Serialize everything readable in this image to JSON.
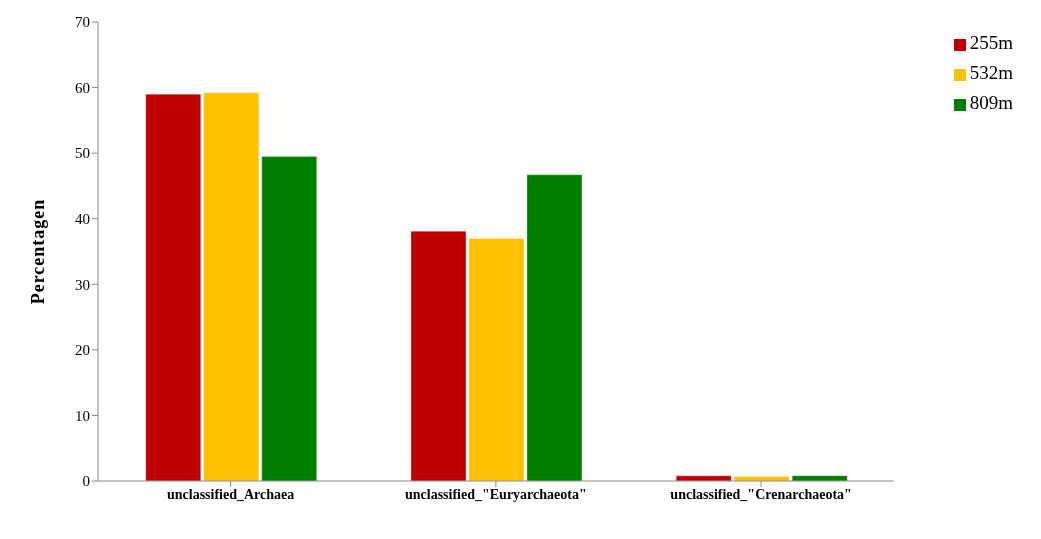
{
  "chart_data": {
    "type": "bar",
    "ylabel": "Percentagen",
    "categories": [
      "unclassified_Archaea",
      "unclassified_\"Euryarchaeota\"",
      "unclassified_\"Crenarchaeota\""
    ],
    "series": [
      {
        "name": "255m",
        "color": "#c00000",
        "values": [
          59,
          38.1,
          0.8
        ]
      },
      {
        "name": "532m",
        "color": "#ffc000",
        "values": [
          59.2,
          37,
          0.7
        ]
      },
      {
        "name": "809m",
        "color": "#008000",
        "values": [
          49.5,
          46.7,
          0.8
        ]
      }
    ],
    "ylim": [
      0,
      70
    ],
    "yticks": [
      0,
      10,
      20,
      30,
      40,
      50,
      60,
      70
    ],
    "grid": false,
    "legend": "top right"
  }
}
